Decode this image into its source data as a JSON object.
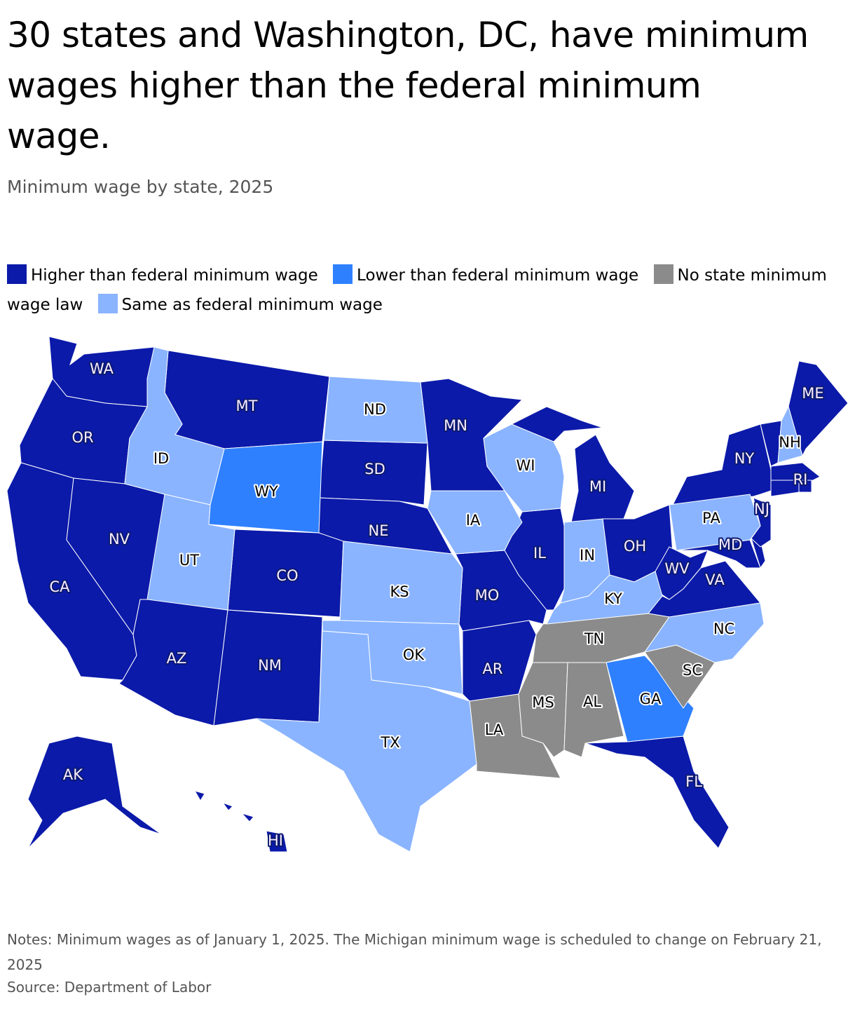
{
  "header": {
    "title": "30 states and Washington, DC, have minimum wages higher than the federal minimum wage.",
    "subtitle": "Minimum wage by state, 2025"
  },
  "legend": [
    {
      "label": "Higher than federal minimum wage",
      "color": "#0b1aa9",
      "states": [
        "WA",
        "OR",
        "CA",
        "NV",
        "AZ",
        "MT",
        "CO",
        "NM",
        "SD",
        "NE",
        "MN",
        "MO",
        "AR",
        "IL",
        "MI",
        "OH",
        "WV",
        "VA",
        "MD",
        "NJ",
        "NY",
        "ME",
        "RI",
        "FL",
        "AK",
        "HI"
      ]
    },
    {
      "label": "Lower than federal minimum wage",
      "color": "#2f80ff",
      "states": [
        "WY",
        "GA"
      ]
    },
    {
      "label": "No state minimum wage law",
      "color": "#8b8b8b",
      "states": [
        "TN",
        "MS",
        "AL",
        "LA",
        "SC"
      ]
    },
    {
      "label": "Same as federal minimum wage",
      "color": "#8ab4ff",
      "states": [
        "ID",
        "UT",
        "ND",
        "KS",
        "OK",
        "TX",
        "IA",
        "WI",
        "IN",
        "KY",
        "PA",
        "NC",
        "NH"
      ]
    }
  ],
  "footer": {
    "notes": "Notes: Minimum wages as of January 1, 2025. The Michigan minimum wage is scheduled to change on February 21, 2025",
    "source": "Source: Department of Labor"
  }
}
